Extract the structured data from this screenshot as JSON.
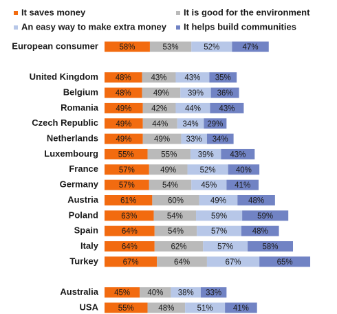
{
  "chart_data": {
    "type": "stacked-bar-horizontal",
    "categories": [
      "European consumer",
      null,
      "United Kingdom",
      "Belgium",
      "Romania",
      "Czech Republic",
      "Netherlands",
      "Luxembourg",
      "France",
      "Germany",
      "Austria",
      "Poland",
      "Spain",
      "Italy",
      "Turkey",
      null,
      "Australia",
      "USA"
    ],
    "series": [
      {
        "name": "It saves money",
        "color": "#f26b10",
        "values": [
          58,
          null,
          48,
          48,
          49,
          49,
          49,
          55,
          57,
          57,
          61,
          63,
          64,
          64,
          67,
          null,
          45,
          55
        ],
        "value_labels": [
          "58%",
          null,
          "48%",
          "48%",
          "49%",
          "49%",
          "49%",
          "55%",
          "57%",
          "57%",
          "61%",
          "63%",
          "64%",
          "64%",
          "67%",
          null,
          "45%",
          "55%"
        ]
      },
      {
        "name": "It is good for the environment",
        "color": "#bababa",
        "values": [
          53,
          null,
          43,
          49,
          42,
          44,
          49,
          55,
          49,
          54,
          60,
          54,
          54,
          62,
          64,
          null,
          40,
          48
        ],
        "value_labels": [
          "53%",
          null,
          "43%",
          "49%",
          "42%",
          "44%",
          "49%",
          "55%",
          "49%",
          "54%",
          "60%",
          "54%",
          "54%",
          "62%",
          "64%",
          null,
          "40%",
          "48%"
        ]
      },
      {
        "name": "An easy way to make extra money",
        "color": "#b7c7e8",
        "values": [
          52,
          null,
          43,
          39,
          44,
          34,
          33,
          39,
          52,
          45,
          49,
          59,
          57,
          57,
          67,
          null,
          38,
          51
        ],
        "value_labels": [
          "52%",
          null,
          "43%",
          "39%",
          "44%",
          "34%",
          "33%",
          "39%",
          "52%",
          "45%",
          "49%",
          "59%",
          "57%",
          "57%",
          "67%",
          null,
          "38%",
          "51%"
        ]
      },
      {
        "name": "It helps build communities",
        "color": "#7183c4",
        "values": [
          47,
          null,
          35,
          36,
          43,
          29,
          34,
          43,
          40,
          41,
          48,
          59,
          48,
          58,
          65,
          null,
          33,
          41
        ],
        "value_labels": [
          "47%",
          null,
          "35%",
          "36%",
          "43%",
          "29%",
          "34%",
          "43%",
          "40%",
          "41%",
          "48%",
          "59%",
          "48%",
          "58%",
          "65%",
          null,
          "33%",
          "41%"
        ]
      }
    ]
  }
}
